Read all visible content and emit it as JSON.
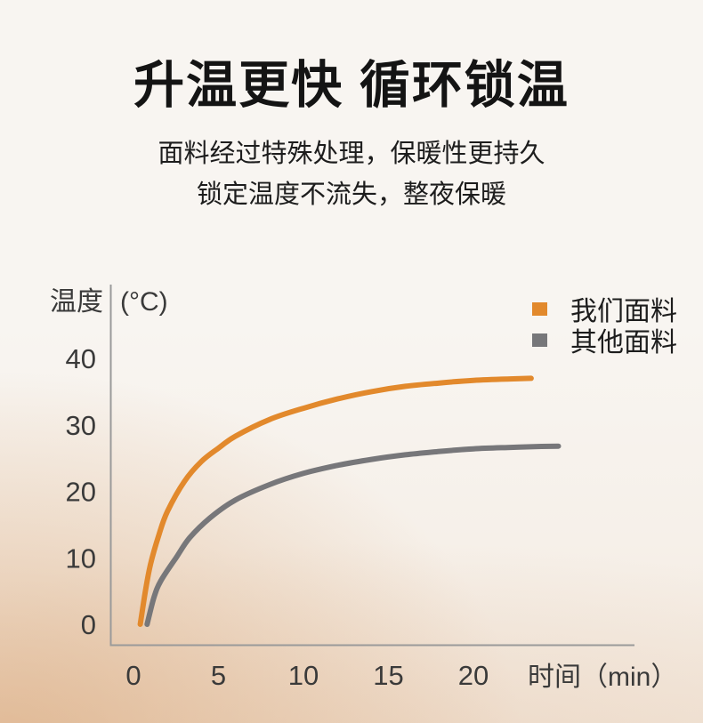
{
  "header": {
    "title": "升温更快 循环锁温",
    "subtitle_line1": "面料经过特殊处理，保暖性更持久",
    "subtitle_line2": "锁定温度不流失，整夜保暖"
  },
  "chart_data": {
    "type": "line",
    "title": "",
    "xlabel": "时间（min）",
    "ylabel": "温度",
    "y_unit": "(°C)",
    "xlim": [
      0,
      25
    ],
    "ylim": [
      0,
      45
    ],
    "x_ticks": [
      0,
      5,
      10,
      15,
      20
    ],
    "y_ticks": [
      0,
      10,
      20,
      30,
      40
    ],
    "grid": false,
    "legend_position": "top-right",
    "series": [
      {
        "name": "我们面料",
        "color": "#E2892C",
        "asymptote_c": 37,
        "points": [
          [
            0.4,
            0
          ],
          [
            0.7,
            5
          ],
          [
            1.0,
            9
          ],
          [
            1.5,
            13.5
          ],
          [
            2.0,
            17
          ],
          [
            3.0,
            21.5
          ],
          [
            4.0,
            24.5
          ],
          [
            5.0,
            26.5
          ],
          [
            6.0,
            28.3
          ],
          [
            8.0,
            30.8
          ],
          [
            10.0,
            32.5
          ],
          [
            12.0,
            33.9
          ],
          [
            14.0,
            35.0
          ],
          [
            16.0,
            35.8
          ],
          [
            18.0,
            36.3
          ],
          [
            20.0,
            36.7
          ],
          [
            22.0,
            36.9
          ],
          [
            23.4,
            37.0
          ]
        ]
      },
      {
        "name": "其他面料",
        "color": "#77777A",
        "asymptote_c": 27,
        "points": [
          [
            0.8,
            0
          ],
          [
            1.2,
            4
          ],
          [
            1.6,
            6.5
          ],
          [
            2.5,
            10
          ],
          [
            3.3,
            13
          ],
          [
            4.5,
            16
          ],
          [
            6.0,
            18.7
          ],
          [
            8.0,
            21.0
          ],
          [
            10.0,
            22.7
          ],
          [
            12.0,
            23.9
          ],
          [
            14.0,
            24.8
          ],
          [
            16.0,
            25.5
          ],
          [
            18.0,
            26.0
          ],
          [
            20.0,
            26.4
          ],
          [
            22.0,
            26.6
          ],
          [
            24.0,
            26.75
          ],
          [
            25.0,
            26.8
          ]
        ]
      }
    ]
  },
  "colors": {
    "accent_orange": "#E2892C",
    "series_gray": "#77777A",
    "axis_gray": "#9A9A9A",
    "text_dark": "#141414",
    "background_top": "#F8F5F1",
    "background_warm_corner": "#DFB astute"
  }
}
